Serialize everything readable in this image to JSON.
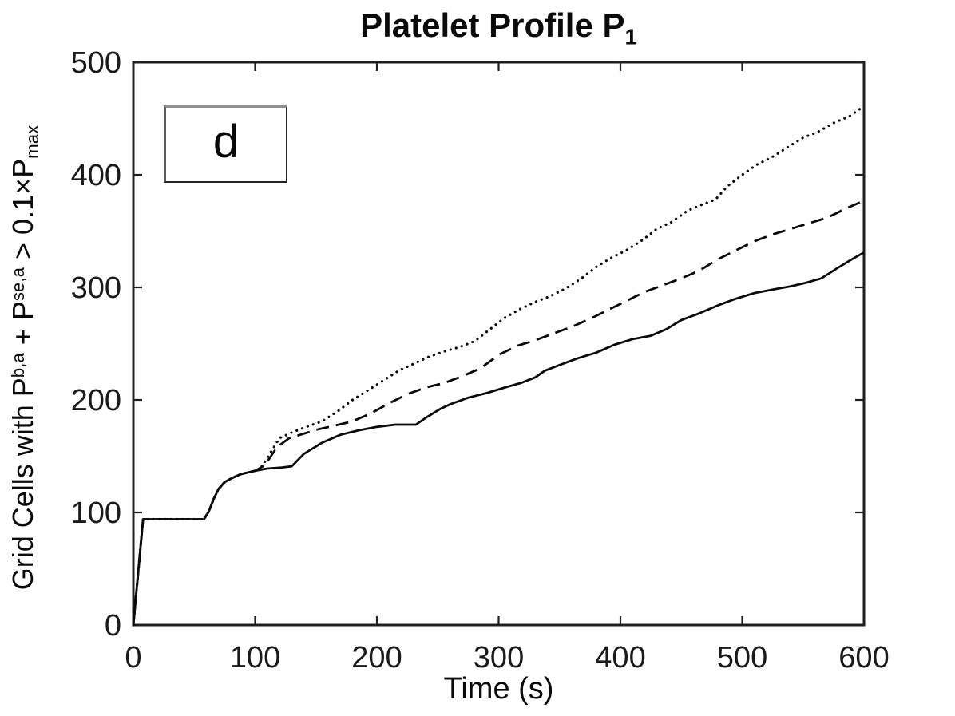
{
  "title": {
    "text": "Platelet Profile P",
    "subscript": "1"
  },
  "panel_label": "d",
  "axes": {
    "xlabel": "Time (s)",
    "ylabel_parts": {
      "t1": "Grid Cells with P",
      "sup1": "b,a",
      "t2": " + P",
      "sup2": "se,a",
      "t3": " > 0.1×P",
      "sub1": "max"
    },
    "x_ticks": [
      0,
      100,
      200,
      300,
      400,
      500,
      600
    ],
    "y_ticks": [
      0,
      100,
      200,
      300,
      400,
      500
    ],
    "xlim": [
      0,
      600
    ],
    "ylim": [
      0,
      500
    ]
  },
  "colors": {
    "line": "#0a0a0a",
    "axis": "#1f1f1f",
    "background": "#ffffff",
    "tick_label": "#1a1a1a"
  },
  "chart_data": {
    "type": "line",
    "title": "Platelet Profile P_1",
    "xlabel": "Time (s)",
    "ylabel": "Grid Cells with P^{b,a} + P^{se,a} > 0.1 x P_max",
    "xlim": [
      0,
      600
    ],
    "ylim": [
      0,
      500
    ],
    "grid": false,
    "legend": "none",
    "series": [
      {
        "name": "solid",
        "style": "solid",
        "x": [
          0,
          8,
          58,
          62,
          66,
          70,
          75,
          80,
          88,
          100,
          110,
          122,
          130,
          140,
          155,
          170,
          185,
          200,
          215,
          232,
          240,
          252,
          260,
          275,
          290,
          305,
          318,
          330,
          338,
          350,
          365,
          380,
          395,
          410,
          425,
          438,
          450,
          465,
          480,
          495,
          510,
          525,
          540,
          552,
          565,
          578,
          590,
          600
        ],
        "y": [
          0,
          94,
          94,
          101,
          112,
          121,
          127,
          130,
          134,
          137,
          139,
          140,
          141,
          152,
          162,
          169,
          173,
          176,
          178,
          178,
          184,
          192,
          196,
          202,
          206,
          211,
          215,
          220,
          226,
          231,
          237,
          242,
          249,
          254,
          257,
          263,
          271,
          277,
          284,
          290,
          295,
          298,
          301,
          304,
          308,
          317,
          325,
          331
        ]
      },
      {
        "name": "dashed",
        "style": "dashed",
        "x": [
          0,
          8,
          58,
          62,
          66,
          70,
          75,
          80,
          88,
          100,
          108,
          118,
          128,
          140,
          152,
          165,
          180,
          195,
          210,
          225,
          240,
          255,
          270,
          285,
          300,
          315,
          330,
          345,
          360,
          375,
          390,
          405,
          420,
          435,
          450,
          465,
          480,
          495,
          510,
          525,
          540,
          555,
          570,
          585,
          600
        ],
        "y": [
          0,
          94,
          94,
          101,
          112,
          121,
          127,
          130,
          134,
          137,
          142,
          158,
          166,
          170,
          174,
          177,
          181,
          188,
          197,
          205,
          211,
          215,
          221,
          228,
          240,
          248,
          253,
          259,
          265,
          272,
          280,
          288,
          296,
          302,
          308,
          315,
          325,
          333,
          341,
          347,
          352,
          357,
          362,
          370,
          377
        ]
      },
      {
        "name": "dotted",
        "style": "dotted",
        "x": [
          0,
          8,
          58,
          62,
          66,
          70,
          75,
          80,
          88,
          100,
          105,
          112,
          120,
          130,
          142,
          155,
          168,
          180,
          192,
          205,
          218,
          230,
          242,
          255,
          268,
          280,
          292,
          305,
          318,
          330,
          342,
          355,
          368,
          380,
          392,
          405,
          418,
          430,
          442,
          455,
          468,
          478,
          488,
          500,
          512,
          525,
          538,
          550,
          562,
          575,
          588,
          600
        ],
        "y": [
          0,
          94,
          94,
          101,
          112,
          121,
          127,
          130,
          134,
          137,
          140,
          152,
          166,
          171,
          176,
          181,
          190,
          200,
          208,
          217,
          226,
          232,
          238,
          243,
          247,
          252,
          262,
          273,
          281,
          287,
          292,
          299,
          308,
          318,
          326,
          333,
          342,
          352,
          358,
          368,
          374,
          378,
          390,
          400,
          409,
          416,
          425,
          433,
          438,
          446,
          452,
          461
        ]
      }
    ]
  }
}
